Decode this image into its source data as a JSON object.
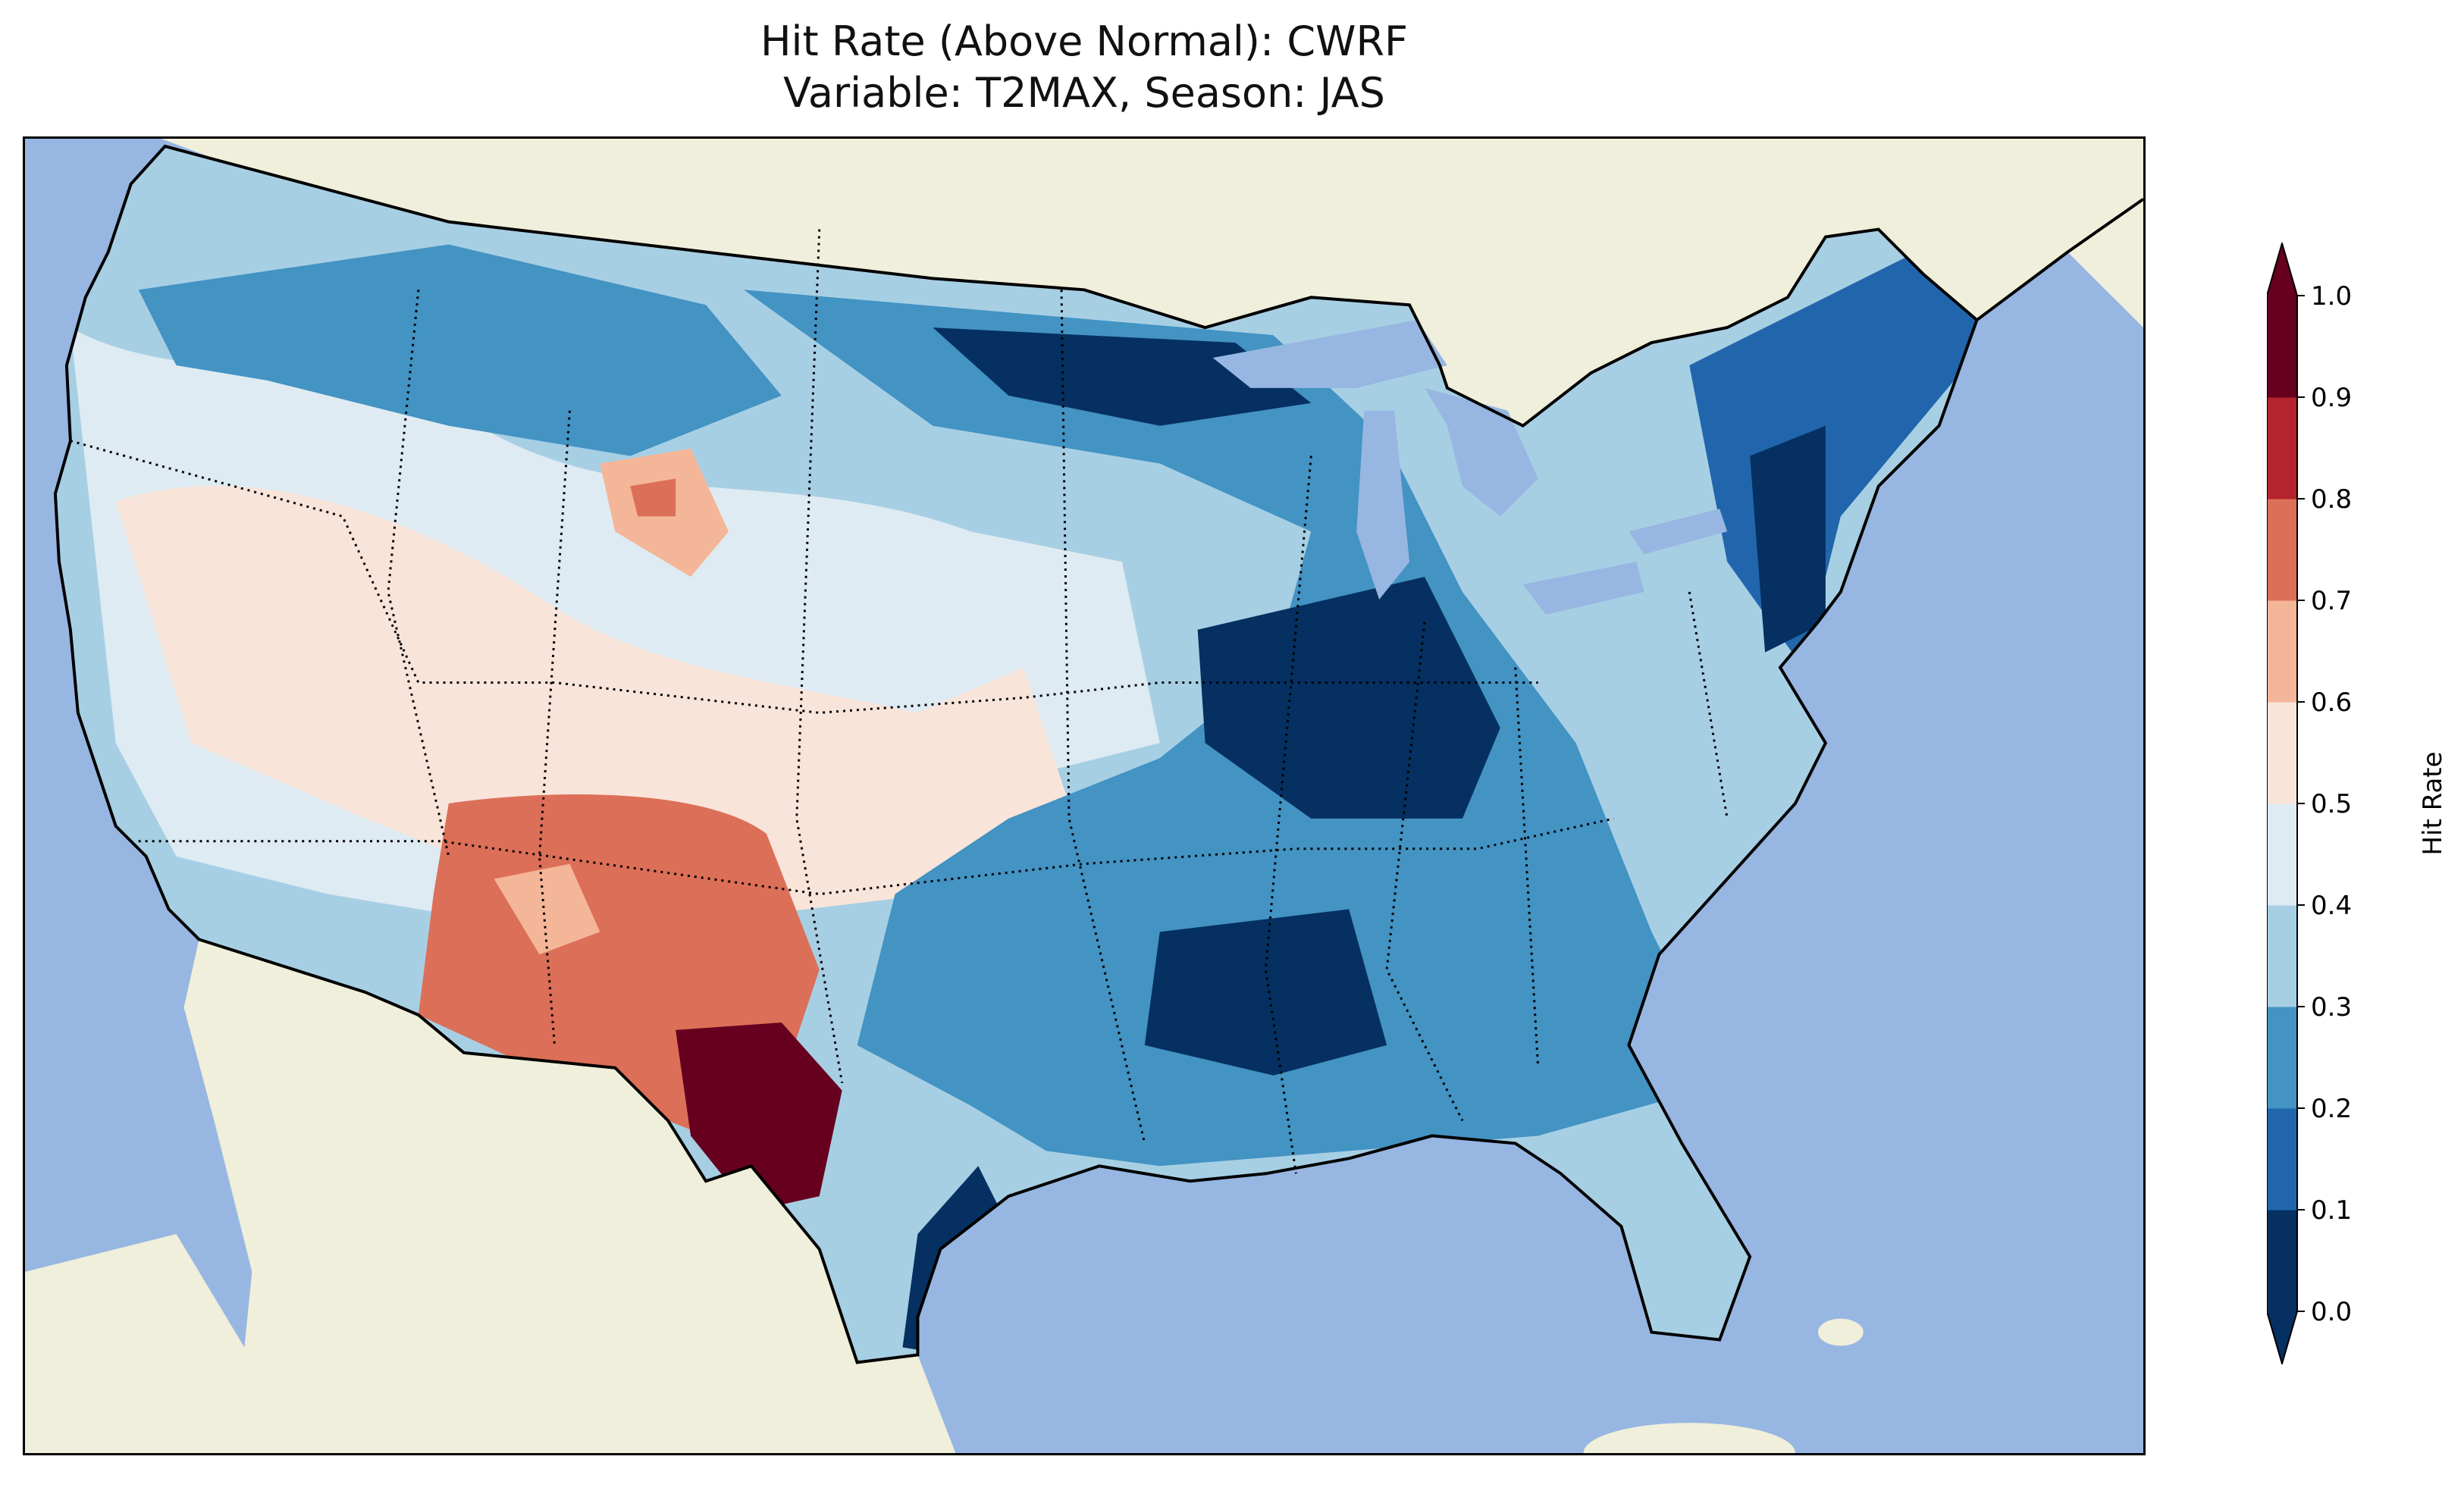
{
  "title": {
    "line1": "Hit Rate (Above Normal): CWRF",
    "line2": "Variable: T2MAX, Season: JAS"
  },
  "map": {
    "ocean_color": "#97b6e1",
    "land_color": "#efefdb",
    "lake_color": "#97b6e1"
  },
  "colorbar": {
    "label": "Hit Rate",
    "extend": "both",
    "ticks": [
      "0.0",
      "0.1",
      "0.2",
      "0.3",
      "0.4",
      "0.5",
      "0.6",
      "0.7",
      "0.8",
      "0.9",
      "1.0"
    ],
    "bins": [
      {
        "range": [
          0.0,
          0.1
        ],
        "color": "#053061"
      },
      {
        "range": [
          0.1,
          0.2
        ],
        "color": "#2166ac"
      },
      {
        "range": [
          0.2,
          0.3
        ],
        "color": "#4393c3"
      },
      {
        "range": [
          0.3,
          0.4
        ],
        "color": "#a7cfe4"
      },
      {
        "range": [
          0.4,
          0.5
        ],
        "color": "#deebf2"
      },
      {
        "range": [
          0.5,
          0.6
        ],
        "color": "#f9e4da"
      },
      {
        "range": [
          0.6,
          0.7
        ],
        "color": "#f4b698"
      },
      {
        "range": [
          0.7,
          0.8
        ],
        "color": "#dc6f58"
      },
      {
        "range": [
          0.8,
          0.9
        ],
        "color": "#b4232e"
      },
      {
        "range": [
          0.9,
          1.0
        ],
        "color": "#67001f"
      }
    ],
    "under_color": "#053061",
    "over_color": "#67001f"
  }
}
